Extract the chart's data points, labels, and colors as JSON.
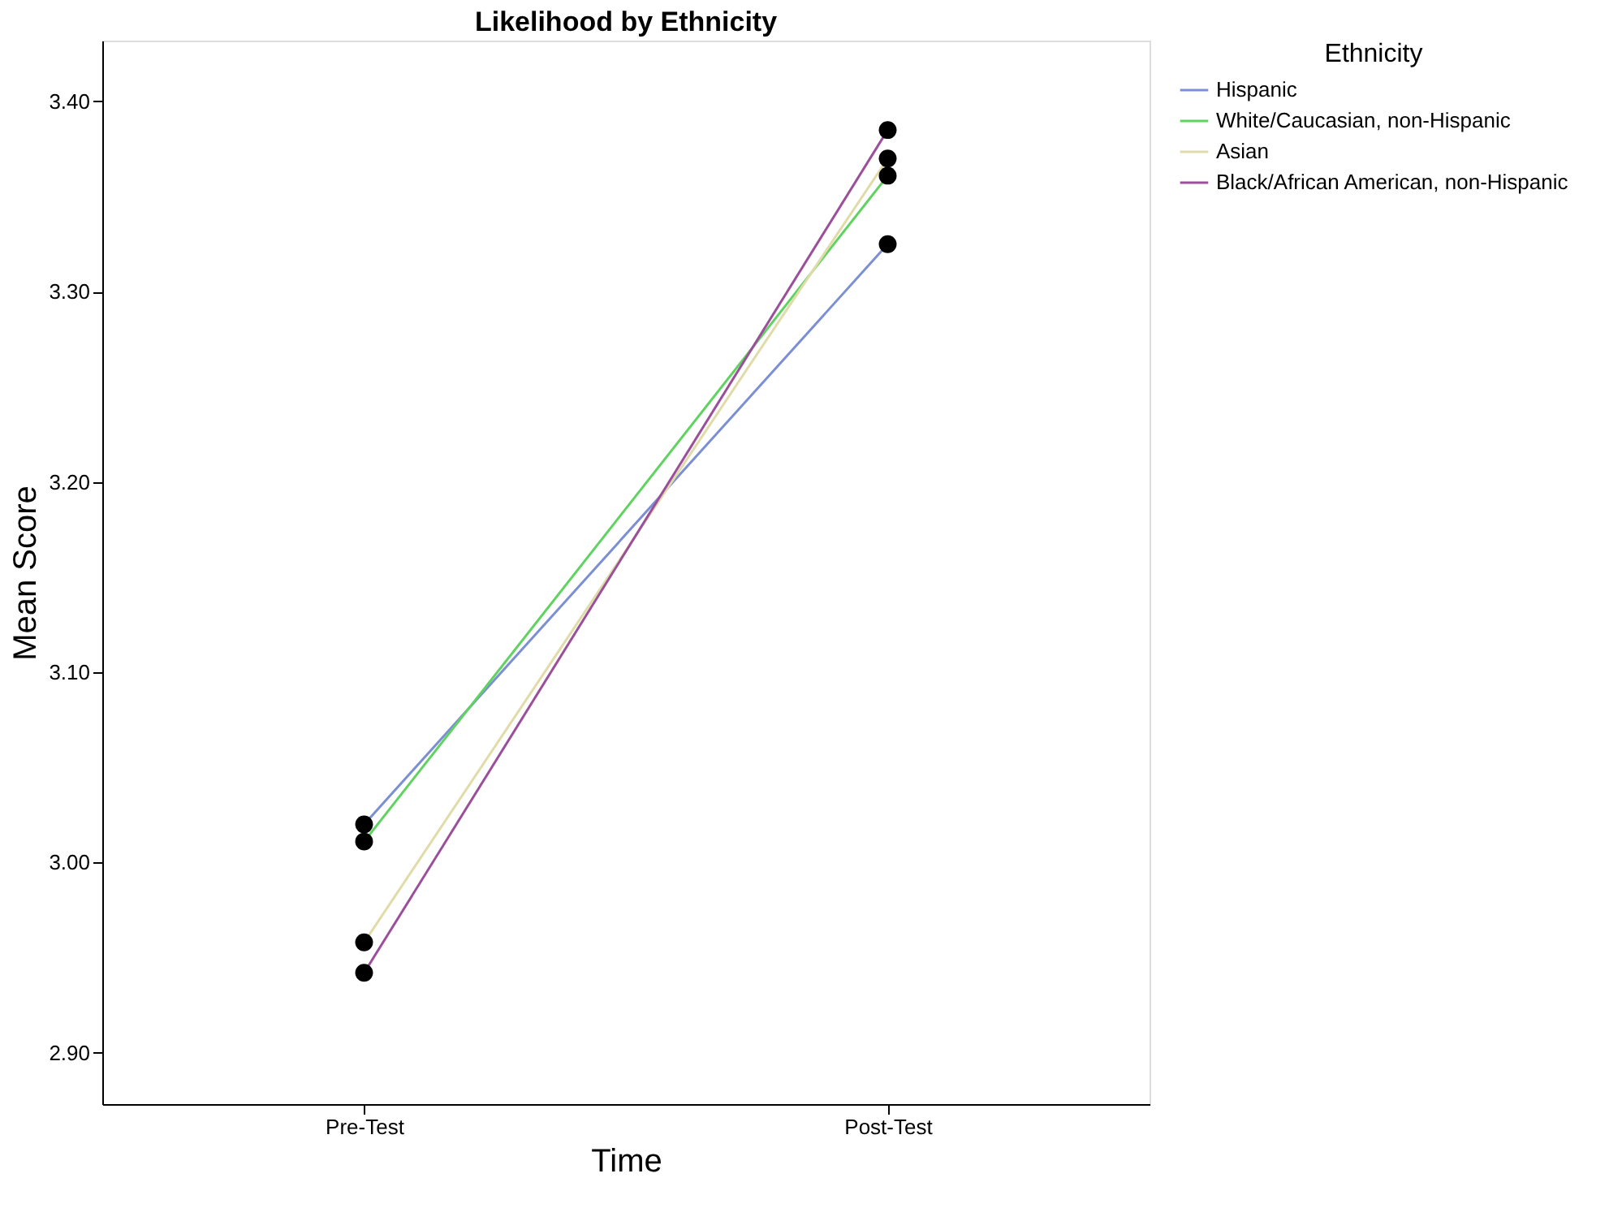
{
  "chart_data": {
    "type": "line",
    "title": "Likelihood by Ethnicity",
    "xlabel": "Time",
    "ylabel": "Mean Score",
    "legend_title": "Ethnicity",
    "categories": [
      "Pre-Test",
      "Post-Test"
    ],
    "series": [
      {
        "name": "Hispanic",
        "color": "#7b8fd4",
        "values": [
          3.02,
          3.325
        ]
      },
      {
        "name": "White/Caucasian, non-Hispanic",
        "color": "#5fd35f",
        "values": [
          3.011,
          3.361
        ]
      },
      {
        "name": "Asian",
        "color": "#e0dcaa",
        "values": [
          2.958,
          3.37
        ]
      },
      {
        "name": "Black/African American, non-Hispanic",
        "color": "#9b4f9b",
        "values": [
          2.942,
          3.385
        ]
      }
    ],
    "ylim": [
      2.873,
      3.432
    ],
    "yticks": [
      {
        "value": 2.9,
        "label": "2.90"
      },
      {
        "value": 3.0,
        "label": "3.00"
      },
      {
        "value": 3.1,
        "label": "3.10"
      },
      {
        "value": 3.2,
        "label": "3.20"
      },
      {
        "value": 3.3,
        "label": "3.30"
      },
      {
        "value": 3.4,
        "label": "3.40"
      }
    ],
    "grid": false,
    "legend": "top right",
    "marker": "circle",
    "line_style": "solid"
  }
}
